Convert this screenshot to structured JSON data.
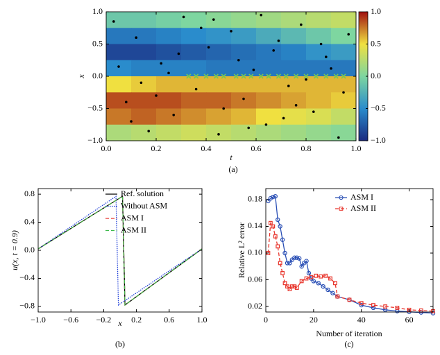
{
  "chart_data": [
    {
      "type": "heatmap",
      "caption": "(a)",
      "xlabel": "t",
      "ylabel": "x",
      "xlim": [
        0,
        1
      ],
      "ylim": [
        -1,
        1
      ],
      "xticks": [
        {
          "value": 0,
          "label": "0.0"
        },
        0.2,
        0.4,
        0.6,
        0.8,
        {
          "value": 1,
          "label": "1.0"
        }
      ],
      "yticks": [
        {
          "value": -1,
          "label": "−1.0"
        },
        {
          "value": -0.5,
          "label": "−0.5"
        },
        {
          "value": 0,
          "label": "0.0"
        },
        0.5,
        {
          "value": 1,
          "label": "1.0"
        }
      ],
      "colormap": "jet",
      "zlim": [
        -1,
        1
      ],
      "zticks": [
        {
          "value": -1,
          "label": "−1.0"
        },
        {
          "value": -0.5,
          "label": "−0.5"
        },
        {
          "value": 0,
          "label": "0.0"
        },
        0.5,
        {
          "value": 1,
          "label": "1.0"
        }
      ],
      "z": [
        [
          -0.1,
          -0.1,
          -0.05,
          0,
          0.05,
          0.1,
          0.15,
          0.2,
          0.25,
          0.3
        ],
        [
          -0.6,
          -0.6,
          -0.55,
          -0.5,
          -0.45,
          -0.4,
          -0.3,
          -0.2,
          -0.1,
          0
        ],
        [
          -0.85,
          -0.85,
          -0.8,
          -0.75,
          -0.7,
          -0.65,
          -0.6,
          -0.55,
          -0.45,
          -0.4
        ],
        [
          -0.5,
          -0.55,
          -0.55,
          -0.55,
          -0.6,
          -0.6,
          -0.6,
          -0.6,
          -0.6,
          -0.6
        ],
        [
          0.5,
          0.55,
          0.6,
          0.6,
          0.6,
          0.6,
          0.6,
          0.6,
          0.6,
          0.6
        ],
        [
          0.85,
          0.85,
          0.85,
          0.8,
          0.8,
          0.75,
          0.7,
          0.65,
          0.6,
          0.55
        ],
        [
          0.75,
          0.8,
          0.75,
          0.7,
          0.65,
          0.6,
          0.5,
          0.45,
          0.4,
          0.3
        ],
        [
          0.2,
          0.25,
          0.3,
          0.35,
          0.3,
          0.25,
          0.2,
          0.15,
          0.1,
          0.05
        ]
      ],
      "series": [
        {
          "color": "#000000",
          "marker": "dot",
          "x": [
            0.03,
            0.08,
            0.12,
            0.17,
            0.22,
            0.27,
            0.31,
            0.36,
            0.41,
            0.45,
            0.5,
            0.55,
            0.59,
            0.64,
            0.69,
            0.73,
            0.78,
            0.83,
            0.88,
            0.93,
            0.97,
            0.05,
            0.14,
            0.2,
            0.29,
            0.38,
            0.47,
            0.53,
            0.62,
            0.71,
            0.8,
            0.86,
            0.95,
            0.1,
            0.25,
            0.43,
            0.57,
            0.67,
            0.76,
            0.9
          ],
          "values": [
            0.85,
            -0.4,
            0.6,
            -0.85,
            0.2,
            -0.6,
            0.92,
            -0.2,
            0.45,
            -0.9,
            0.7,
            -0.35,
            0.1,
            -0.75,
            0.55,
            -0.15,
            0.8,
            -0.55,
            0.3,
            -0.95,
            0.65,
            0.15,
            -0.1,
            -0.3,
            0.35,
            0.75,
            -0.5,
            0.25,
            0.95,
            -0.65,
            -0.05,
            0.5,
            -0.25,
            -0.7,
            0.05,
            0.88,
            -0.8,
            0.4,
            -0.45,
            0.12
          ]
        },
        {
          "color": "#7cc74e",
          "marker": "x",
          "x": [
            0.33,
            0.36,
            0.4,
            0.44,
            0.47,
            0.52,
            0.55,
            0.58,
            0.62,
            0.65,
            0.69,
            0.72,
            0.76,
            0.8,
            0.84,
            0.88,
            0.92,
            0.95
          ],
          "values": [
            0,
            0,
            0,
            0,
            0,
            0,
            0,
            0,
            0,
            0,
            0,
            0,
            0,
            0,
            0,
            0,
            0,
            0
          ]
        }
      ]
    },
    {
      "type": "line",
      "caption": "(b)",
      "xlabel": "x",
      "ylabel": "u(x, t = 0.9)",
      "xlim": [
        -1,
        1
      ],
      "ylim": [
        -0.88,
        0.88
      ],
      "xticks": [
        {
          "value": -1,
          "label": "−1.0"
        },
        {
          "value": -0.6,
          "label": "−0.6"
        },
        {
          "value": -0.2,
          "label": "−0.2"
        },
        0.2,
        0.6,
        {
          "value": 1,
          "label": "1.0"
        }
      ],
      "yticks": [
        {
          "value": -0.8,
          "label": "−0.8"
        },
        {
          "value": -0.4,
          "label": "−0.4"
        },
        {
          "value": 0,
          "label": "0.0"
        },
        0.4,
        0.8
      ],
      "legend": "upper right",
      "series": [
        {
          "name": "Ref. solution",
          "color": "#000000",
          "linestyle": "solid",
          "x": [
            -1,
            0.03,
            0.06,
            1
          ],
          "values": [
            0.02,
            0.77,
            -0.78,
            0.02
          ]
        },
        {
          "name": "Without ASM",
          "color": "#1f3fd8",
          "linestyle": "dotted",
          "x": [
            -1,
            -0.05,
            -0.02,
            1
          ],
          "values": [
            0.02,
            0.77,
            -0.78,
            0.02
          ]
        },
        {
          "name": "ASM I",
          "color": "#e8352c",
          "linestyle": "dashed",
          "x": [
            -1,
            0.03,
            0.06,
            1
          ],
          "values": [
            0.02,
            0.77,
            -0.78,
            0.02
          ]
        },
        {
          "name": "ASM II",
          "color": "#3cb84a",
          "linestyle": "dashed",
          "x": [
            -1,
            0.03,
            0.06,
            1
          ],
          "values": [
            0.02,
            0.77,
            -0.78,
            0.02
          ]
        }
      ]
    },
    {
      "type": "line",
      "caption": "(c)",
      "xlabel": "Number of iteration",
      "ylabel": "Relative L² error",
      "xlim": [
        0,
        70
      ],
      "ylim": [
        0.0117,
        0.1966
      ],
      "xticks": [
        0,
        20,
        40,
        60
      ],
      "yticks": [
        0.02,
        0.06,
        {
          "value": 0.1,
          "label": "0.10"
        },
        0.14,
        0.18
      ],
      "legend": "upper right",
      "series": [
        {
          "name": "ASM I",
          "color": "#2a4fb5",
          "linestyle": "solid",
          "marker": "o",
          "x": [
            1,
            2,
            3,
            4,
            5,
            6,
            7,
            8,
            9,
            10,
            11,
            12,
            13,
            14,
            15,
            16,
            17,
            18,
            19,
            20,
            22,
            24,
            26,
            28,
            30,
            35,
            40,
            45,
            50,
            55,
            60,
            65,
            70
          ],
          "values": [
            0.178,
            0.182,
            0.184,
            0.185,
            0.15,
            0.14,
            0.12,
            0.1,
            0.085,
            0.085,
            0.09,
            0.093,
            0.093,
            0.092,
            0.08,
            0.085,
            0.088,
            0.07,
            0.062,
            0.058,
            0.055,
            0.05,
            0.045,
            0.04,
            0.035,
            0.03,
            0.022,
            0.018,
            0.015,
            0.013,
            0.012,
            0.011,
            0.01
          ]
        },
        {
          "name": "ASM II",
          "color": "#e8352c",
          "linestyle": "dashed",
          "marker": "s",
          "x": [
            1,
            2,
            3,
            4,
            5,
            6,
            7,
            8,
            9,
            10,
            11,
            12,
            13,
            15,
            17,
            19,
            21,
            23,
            25,
            27,
            29,
            30,
            35,
            40,
            45,
            50,
            55,
            60,
            65,
            70
          ],
          "values": [
            0.1,
            0.145,
            0.14,
            0.125,
            0.11,
            0.085,
            0.07,
            0.055,
            0.05,
            0.046,
            0.05,
            0.05,
            0.048,
            0.058,
            0.062,
            0.064,
            0.066,
            0.065,
            0.066,
            0.062,
            0.055,
            0.035,
            0.03,
            0.025,
            0.022,
            0.02,
            0.018,
            0.015,
            0.014,
            0.013
          ]
        }
      ]
    }
  ]
}
